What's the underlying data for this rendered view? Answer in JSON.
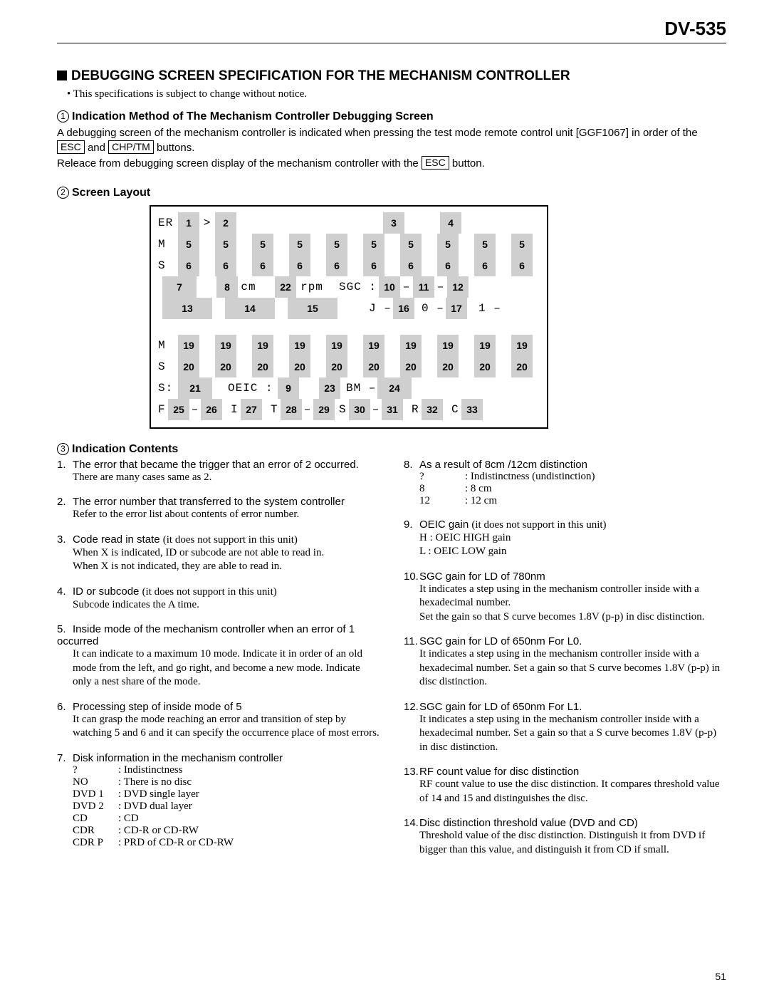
{
  "model": "DV-535",
  "titleMain": "DEBUGGING SCREEN SPECIFICATION FOR THE MECHANISM CONTROLLER",
  "notice": "This specifications is subject to change without notice.",
  "sec1": {
    "circ": "1",
    "title": "Indication Method of The Mechanism Controller Debugging Screen",
    "p1a": "A debugging screen of the mechanism controller is indicated when pressing the test mode remote control unit [GGF1067] in order of the ",
    "key1": "ESC",
    "p1b": " and ",
    "key2": "CHP/TM",
    "p1c": " buttons.",
    "p2a": "Releace from debugging screen display of the mechanism controller with the ",
    "key3": "ESC",
    "p2b": " button."
  },
  "sec2": {
    "circ": "2",
    "title": "Screen Layout"
  },
  "layout": {
    "r1": {
      "l": "ER",
      "a": "1",
      "gt": ">",
      "b": "2",
      "c": "3",
      "d": "4"
    },
    "r_m": {
      "l": "M",
      "v": "5"
    },
    "r_s": {
      "l": "S",
      "v": "6"
    },
    "r4": {
      "a": "7",
      "b": "8",
      "cm": "cm",
      "c": "22",
      "rpm": "rpm",
      "sgc": "SGC :",
      "d": "10",
      "dash": "–",
      "e": "11",
      "f": "12"
    },
    "r5": {
      "a": "13",
      "b": "14",
      "c": "15",
      "j": "J –",
      "d": "16",
      "zero": "0 –",
      "e": "17",
      "one": "1 –"
    },
    "r_m2": {
      "l": "M",
      "v": "19"
    },
    "r_s2": {
      "l": "S",
      "v": "20"
    },
    "r8": {
      "sl": "S:",
      "a": "21",
      "oe": "OEIC :",
      "b": "9",
      "c": "23",
      "bm": "BM –",
      "d": "24"
    },
    "r9": {
      "f": "F",
      "a": "25",
      "dash": "–",
      "b": "26",
      "i": "I",
      "c": "27",
      "t": "T",
      "d": "28",
      "e": "29",
      "s": "S",
      "g": "30",
      "h": "31",
      "r": "R",
      "j": "32",
      "cc": "C",
      "k": "33"
    }
  },
  "sec3": {
    "circ": "3",
    "title": "Indication Contents"
  },
  "left": [
    {
      "n": "1.",
      "t": "The error that became the trigger that an error of 2 occurred.",
      "d": "There are many cases same as 2."
    },
    {
      "n": "2.",
      "t": "The error number that transferred to the system controller",
      "d": "Refer to the error list about contents of error number."
    },
    {
      "n": "3.",
      "t": "Code read in state",
      "paren": "(it does not support in this unit)",
      "d": "When X is indicated, ID or subcode are not able to read in.\nWhen X is not indicated, they are able to read in."
    },
    {
      "n": "4.",
      "t": "ID or subcode",
      "paren": "(it does not support in this unit)",
      "d": "Subcode indicates the A time."
    },
    {
      "n": "5.",
      "t": "Inside mode of the mechanism controller when an error of 1 occurred",
      "d": "It can indicate to a maximum 10 mode. Indicate it in order of an old mode from the left, and go right, and become a new mode. Indicate only a nest share of the mode."
    },
    {
      "n": "6.",
      "t": "Processing step of inside mode of 5",
      "d": "It can grasp the mode reaching an error and transition of step by watching 5 and 6 and it can specify the occurrence place of most errors."
    },
    {
      "n": "7.",
      "t": "Disk information in the mechanism controller",
      "kv": [
        {
          "k": "?",
          "v": ": Indistinctness"
        },
        {
          "k": "NO",
          "v": ": There is no disc"
        },
        {
          "k": "DVD 1",
          "v": ": DVD single layer"
        },
        {
          "k": "DVD 2",
          "v": ": DVD dual layer"
        },
        {
          "k": "CD",
          "v": ": CD"
        },
        {
          "k": "CDR",
          "v": ": CD-R or CD-RW"
        },
        {
          "k": "CDR P",
          "v": ": PRD of CD-R or CD-RW"
        }
      ]
    }
  ],
  "right": [
    {
      "n": "8.",
      "t": "As a result of 8cm /12cm distinction",
      "kv": [
        {
          "k": "?",
          "v": ": Indistinctness (undistinction)"
        },
        {
          "k": "8",
          "v": ": 8 cm"
        },
        {
          "k": "12",
          "v": ": 12 cm"
        }
      ]
    },
    {
      "n": "9.",
      "t": "OEIC gain",
      "paren": "(it does not support in this unit)",
      "d": "H : OEIC HIGH gain\nL  : OEIC LOW gain"
    },
    {
      "n": "10.",
      "t": "SGC gain for LD of 780nm",
      "d": "It indicates a step using in the mechanism controller inside with a hexadecimal number.\nSet the gain so that S curve becomes 1.8V (p-p) in disc distinction."
    },
    {
      "n": "11.",
      "t": "SGC gain for LD of 650nm For L0.",
      "d": "It indicates a step using in the mechanism controller inside with a hexadecimal number. Set a gain so that S curve becomes 1.8V (p-p) in disc distinction."
    },
    {
      "n": "12.",
      "t": "SGC gain for LD of 650nm For L1.",
      "d": "It indicates a step using in the mechanism controller inside with a hexadecimal number. Set a gain so that a S curve becomes 1.8V (p-p) in disc distinction."
    },
    {
      "n": "13.",
      "t": "RF count value for disc distinction",
      "d": "RF count value to use the disc distinction. It compares threshold value of 14 and 15 and distinguishes the disc."
    },
    {
      "n": "14.",
      "t": "Disc distinction threshold value (DVD and CD)",
      "d": "Threshold value of the disc distinction. Distinguish it from DVD if bigger than this value, and distinguish it from CD if small."
    }
  ],
  "pageNumber": "51"
}
